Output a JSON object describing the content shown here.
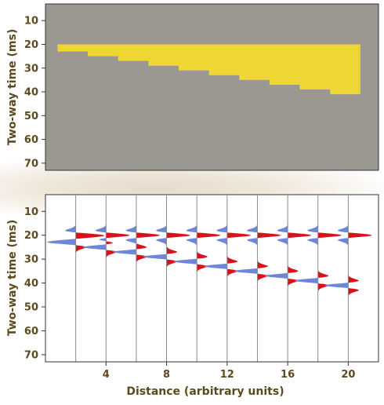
{
  "chart_data": [
    {
      "type": "heatmap",
      "description_of_layers": "yellow layer wedge on gray background",
      "ylabel": "Two-way time (ms)",
      "xlim": [
        0,
        22
      ],
      "ylim": [
        3,
        73
      ],
      "yticks": [
        10,
        20,
        30,
        40,
        50,
        60,
        70
      ],
      "background_color": "#9a9890",
      "layer_color": "#eed634",
      "layer_top": 20,
      "layer_steps": [
        {
          "x_from": 0.8,
          "x_to": 2.8,
          "bottom": 23
        },
        {
          "x_from": 2.8,
          "x_to": 4.8,
          "bottom": 25
        },
        {
          "x_from": 4.8,
          "x_to": 6.8,
          "bottom": 27
        },
        {
          "x_from": 6.8,
          "x_to": 8.8,
          "bottom": 29
        },
        {
          "x_from": 8.8,
          "x_to": 10.8,
          "bottom": 31
        },
        {
          "x_from": 10.8,
          "x_to": 12.8,
          "bottom": 33
        },
        {
          "x_from": 12.8,
          "x_to": 14.8,
          "bottom": 35
        },
        {
          "x_from": 14.8,
          "x_to": 16.8,
          "bottom": 37
        },
        {
          "x_from": 16.8,
          "x_to": 18.8,
          "bottom": 39
        },
        {
          "x_from": 18.8,
          "x_to": 20.8,
          "bottom": 41
        }
      ]
    },
    {
      "type": "line",
      "xlabel": "Distance (arbitrary units)",
      "ylabel": "Two-way time (ms)",
      "xlim": [
        0,
        22
      ],
      "ylim": [
        3,
        73
      ],
      "xticks": [
        4,
        8,
        12,
        16,
        20
      ],
      "yticks": [
        10,
        20,
        30,
        40,
        50,
        60,
        70
      ],
      "positive_color": "#d8121c",
      "negative_color": "#6f86d8",
      "traces": [
        {
          "x": 2,
          "top_time": 20,
          "base_time": 23
        },
        {
          "x": 4,
          "top_time": 20,
          "base_time": 25
        },
        {
          "x": 6,
          "top_time": 20,
          "base_time": 27
        },
        {
          "x": 8,
          "top_time": 20,
          "base_time": 29
        },
        {
          "x": 10,
          "top_time": 20,
          "base_time": 31
        },
        {
          "x": 12,
          "top_time": 20,
          "base_time": 33
        },
        {
          "x": 14,
          "top_time": 20,
          "base_time": 35
        },
        {
          "x": 16,
          "top_time": 20,
          "base_time": 37
        },
        {
          "x": 18,
          "top_time": 20,
          "base_time": 39
        },
        {
          "x": 20,
          "top_time": 20,
          "base_time": 41
        }
      ]
    }
  ]
}
